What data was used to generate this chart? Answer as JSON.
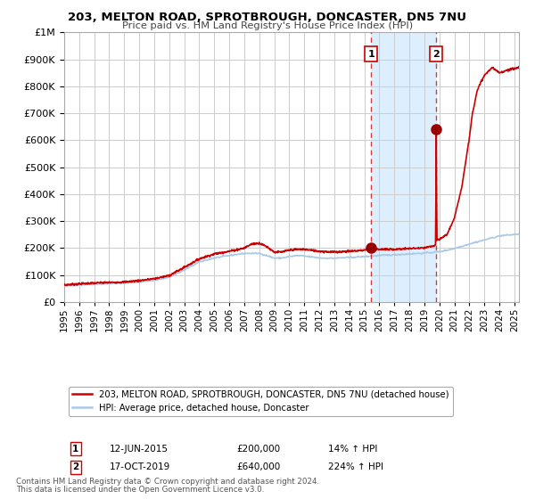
{
  "title_line1": "203, MELTON ROAD, SPROTBROUGH, DONCASTER, DN5 7NU",
  "title_line2": "Price paid vs. HM Land Registry's House Price Index (HPI)",
  "ylim": [
    0,
    1000000
  ],
  "yticks": [
    0,
    100000,
    200000,
    300000,
    400000,
    500000,
    600000,
    700000,
    800000,
    900000,
    1000000
  ],
  "ytick_labels": [
    "£0",
    "£100K",
    "£200K",
    "£300K",
    "£400K",
    "£500K",
    "£600K",
    "£700K",
    "£800K",
    "£900K",
    "£1M"
  ],
  "xlim_start": 1995.0,
  "xlim_end": 2025.3,
  "xticks": [
    1995,
    1996,
    1997,
    1998,
    1999,
    2000,
    2001,
    2002,
    2003,
    2004,
    2005,
    2006,
    2007,
    2008,
    2009,
    2010,
    2011,
    2012,
    2013,
    2014,
    2015,
    2016,
    2017,
    2018,
    2019,
    2020,
    2021,
    2022,
    2023,
    2024,
    2025
  ],
  "marker1_x": 2015.45,
  "marker1_y": 200000,
  "marker2_x": 2019.79,
  "marker2_y": 640000,
  "marker1_label": "1",
  "marker2_label": "2",
  "event1_date": "12-JUN-2015",
  "event1_price": "£200,000",
  "event1_hpi": "14% ↑ HPI",
  "event2_date": "17-OCT-2019",
  "event2_price": "£640,000",
  "event2_hpi": "224% ↑ HPI",
  "legend_line1": "203, MELTON ROAD, SPROTBROUGH, DONCASTER, DN5 7NU (detached house)",
  "legend_line2": "HPI: Average price, detached house, Doncaster",
  "hpi_line_color": "#a8c8e8",
  "price_line_color": "#cc0000",
  "shade_color": "#ddeeff",
  "marker_color": "#990000",
  "grid_color": "#cccccc",
  "bg_color": "#ffffff",
  "footnote1": "Contains HM Land Registry data © Crown copyright and database right 2024.",
  "footnote2": "This data is licensed under the Open Government Licence v3.0.",
  "hpi_key_x": [
    1995.0,
    1996.0,
    1997.0,
    1998.0,
    1999.0,
    2000.0,
    2001.0,
    2002.0,
    2003.0,
    2004.0,
    2005.0,
    2006.0,
    2007.0,
    2008.0,
    2008.5,
    2009.0,
    2009.5,
    2010.0,
    2010.5,
    2011.0,
    2012.0,
    2013.0,
    2014.0,
    2015.0,
    2015.45,
    2016.0,
    2017.0,
    2018.0,
    2019.0,
    2019.79,
    2020.0,
    2021.0,
    2022.0,
    2023.0,
    2024.0,
    2025.3
  ],
  "hpi_key_y": [
    60000,
    63000,
    66000,
    68000,
    70000,
    74000,
    80000,
    92000,
    118000,
    148000,
    163000,
    172000,
    180000,
    180000,
    172000,
    162000,
    163000,
    168000,
    172000,
    170000,
    163000,
    162000,
    165000,
    168000,
    170000,
    172000,
    175000,
    178000,
    181000,
    185000,
    186000,
    198000,
    215000,
    230000,
    245000,
    252000
  ],
  "red_key_x": [
    1995.0,
    1996.0,
    1997.0,
    1998.0,
    1999.0,
    2000.0,
    2001.0,
    2002.0,
    2003.0,
    2004.0,
    2005.0,
    2006.0,
    2007.0,
    2007.5,
    2008.0,
    2008.5,
    2009.0,
    2009.5,
    2010.0,
    2010.5,
    2011.0,
    2012.0,
    2013.0,
    2014.0,
    2015.0,
    2015.45,
    2016.0,
    2017.0,
    2018.0,
    2019.0,
    2019.4,
    2019.75,
    2019.79,
    2019.83,
    2019.9,
    2020.0,
    2020.5,
    2021.0,
    2021.5,
    2022.0,
    2022.2,
    2022.5,
    2022.8,
    2023.0,
    2023.5,
    2024.0,
    2024.5,
    2025.3
  ],
  "red_key_y": [
    63000,
    67000,
    70000,
    72000,
    74000,
    79000,
    86000,
    98000,
    128000,
    160000,
    178000,
    188000,
    200000,
    215000,
    218000,
    205000,
    185000,
    185000,
    192000,
    195000,
    195000,
    188000,
    185000,
    188000,
    192000,
    200000,
    195000,
    195000,
    198000,
    200000,
    205000,
    210000,
    640000,
    230000,
    228000,
    232000,
    250000,
    310000,
    430000,
    610000,
    700000,
    780000,
    820000,
    840000,
    870000,
    850000,
    860000,
    870000
  ]
}
